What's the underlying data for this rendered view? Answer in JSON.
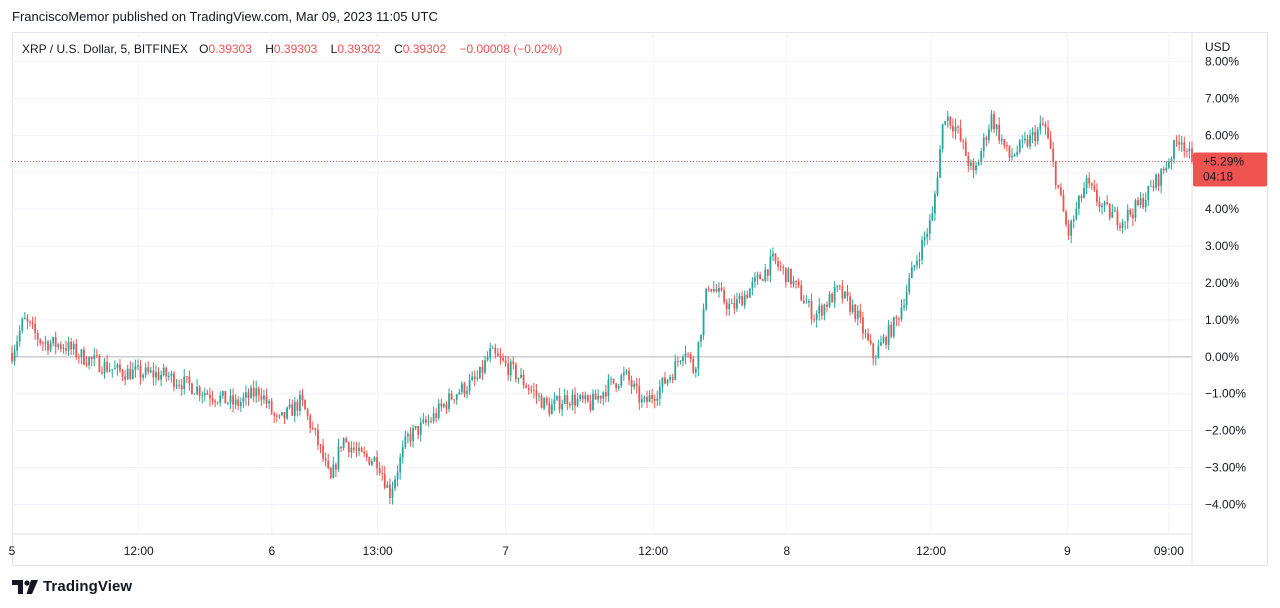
{
  "header": {
    "published_line": "FranciscoMemor published on TradingView.com, Mar 09, 2023 11:05 UTC"
  },
  "legend": {
    "symbol": "XRP / U.S. Dollar, 5, BITFINEX",
    "open_label": "O",
    "open": "0.39303",
    "high_label": "H",
    "high": "0.39303",
    "low_label": "L",
    "low": "0.39302",
    "close_label": "C",
    "close": "0.39302",
    "change": "−0.00008 (−0.02%)"
  },
  "footer": {
    "brand": "TradingView"
  },
  "colors": {
    "up": "#26a69a",
    "down": "#ef5350",
    "grid": "#f0f3fa",
    "axis_text": "#131722",
    "badge": "#ef5350"
  },
  "chart_data": {
    "type": "candlestick",
    "title": "XRP / U.S. Dollar, 5, BITFINEX",
    "y_unit": "USD",
    "scale": "percent",
    "ylim": [
      -4.8,
      8.8
    ],
    "y_ticks": [
      8,
      7,
      6,
      5,
      4,
      3,
      2,
      1,
      0,
      -1,
      -2,
      -3,
      -4
    ],
    "y_tick_labels": [
      "8.00%",
      "7.00%",
      "6.00%",
      "",
      "4.00%",
      "3.00%",
      "2.00%",
      "1.00%",
      "0.00%",
      "−1.00%",
      "−2.00%",
      "−3.00%",
      "−4.00%"
    ],
    "zero_line": 0,
    "x_tick_labels": [
      {
        "label": "5",
        "t": 0
      },
      {
        "label": "12:00",
        "t": 0.1074
      },
      {
        "label": "6",
        "t": 0.2202
      },
      {
        "label": "13:00",
        "t": 0.3099
      },
      {
        "label": "7",
        "t": 0.4183
      },
      {
        "label": "12:00",
        "t": 0.5434
      },
      {
        "label": "8",
        "t": 0.6566
      },
      {
        "label": "12:00",
        "t": 0.7789
      },
      {
        "label": "9",
        "t": 0.8944
      },
      {
        "label": "09:00",
        "t": 0.9804
      }
    ],
    "last_value": 5.29,
    "last_value_label": "+5.29%",
    "countdown": "04:18",
    "price_path": [
      [
        0.0,
        0.1
      ],
      [
        0.01,
        1.0
      ],
      [
        0.025,
        0.4
      ],
      [
        0.045,
        0.3
      ],
      [
        0.06,
        0.0
      ],
      [
        0.09,
        -0.4
      ],
      [
        0.13,
        -0.5
      ],
      [
        0.16,
        -0.9
      ],
      [
        0.19,
        -1.3
      ],
      [
        0.21,
        -0.9
      ],
      [
        0.225,
        -1.8
      ],
      [
        0.245,
        -1.2
      ],
      [
        0.26,
        -2.4
      ],
      [
        0.27,
        -3.4
      ],
      [
        0.28,
        -2.2
      ],
      [
        0.295,
        -2.7
      ],
      [
        0.31,
        -2.8
      ],
      [
        0.32,
        -3.7
      ],
      [
        0.335,
        -2.2
      ],
      [
        0.355,
        -1.7
      ],
      [
        0.375,
        -1.0
      ],
      [
        0.395,
        -0.6
      ],
      [
        0.405,
        0.1
      ],
      [
        0.425,
        -0.4
      ],
      [
        0.44,
        -0.9
      ],
      [
        0.455,
        -1.4
      ],
      [
        0.47,
        -1.1
      ],
      [
        0.49,
        -1.3
      ],
      [
        0.505,
        -0.8
      ],
      [
        0.52,
        -0.5
      ],
      [
        0.535,
        -1.3
      ],
      [
        0.55,
        -0.8
      ],
      [
        0.56,
        -0.4
      ],
      [
        0.57,
        0.3
      ],
      [
        0.578,
        -0.4
      ],
      [
        0.59,
        2.0
      ],
      [
        0.61,
        1.3
      ],
      [
        0.63,
        2.0
      ],
      [
        0.645,
        2.6
      ],
      [
        0.66,
        2.1
      ],
      [
        0.68,
        1.1
      ],
      [
        0.7,
        1.8
      ],
      [
        0.715,
        1.2
      ],
      [
        0.73,
        0.0
      ],
      [
        0.75,
        1.0
      ],
      [
        0.765,
        2.5
      ],
      [
        0.78,
        3.8
      ],
      [
        0.79,
        6.6
      ],
      [
        0.8,
        6.2
      ],
      [
        0.815,
        4.9
      ],
      [
        0.83,
        6.5
      ],
      [
        0.845,
        5.4
      ],
      [
        0.86,
        5.8
      ],
      [
        0.875,
        6.3
      ],
      [
        0.885,
        4.8
      ],
      [
        0.895,
        3.3
      ],
      [
        0.91,
        4.7
      ],
      [
        0.925,
        4.0
      ],
      [
        0.94,
        3.7
      ],
      [
        0.955,
        4.1
      ],
      [
        0.975,
        5.0
      ],
      [
        0.99,
        6.0
      ],
      [
        1.0,
        5.29
      ]
    ]
  }
}
